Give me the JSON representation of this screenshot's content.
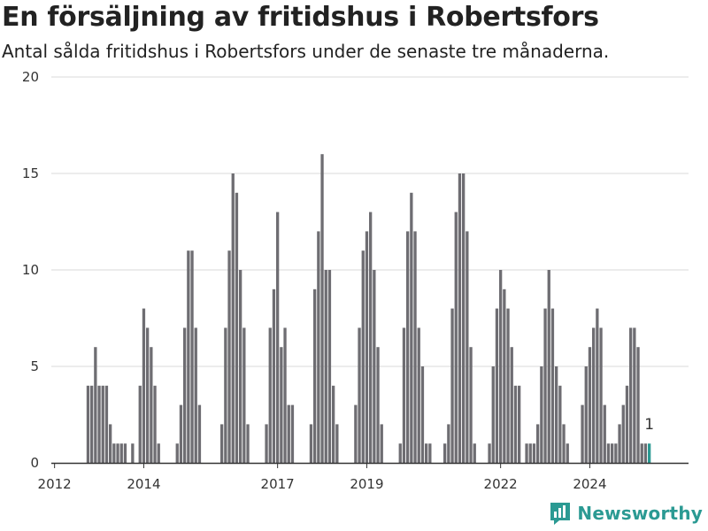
{
  "title": "En försäljning av fritidshus i Robertsfors",
  "subtitle": "Antal sålda fritidshus i Robertsfors under de senaste tre månaderna.",
  "brand": "Newsworthy",
  "chart_data": {
    "type": "bar",
    "x_start": "2012-01",
    "ylim": [
      0,
      20
    ],
    "y_ticks": [
      0,
      5,
      10,
      15,
      20
    ],
    "x_ticks": [
      "2012",
      "2014",
      "2017",
      "2019",
      "2022",
      "2024"
    ],
    "x_tick_months": [
      "2012-01",
      "2014-01",
      "2017-01",
      "2019-01",
      "2022-01",
      "2024-01"
    ],
    "grid": true,
    "colors": {
      "bar": "#6e6d72",
      "highlight": "#2b9a93",
      "grid": "#d9d9d9",
      "axis": "#333333"
    },
    "last_value_label": "1",
    "values": [
      0,
      0,
      0,
      0,
      0,
      0,
      0,
      0,
      0,
      4,
      4,
      6,
      4,
      4,
      4,
      2,
      1,
      1,
      1,
      1,
      0,
      1,
      0,
      4,
      8,
      7,
      6,
      4,
      1,
      0,
      0,
      0,
      0,
      1,
      3,
      7,
      11,
      11,
      7,
      3,
      0,
      0,
      0,
      0,
      0,
      2,
      7,
      11,
      15,
      14,
      10,
      7,
      2,
      0,
      0,
      0,
      0,
      2,
      7,
      9,
      13,
      6,
      7,
      3,
      3,
      0,
      0,
      0,
      0,
      2,
      9,
      12,
      16,
      10,
      10,
      4,
      2,
      0,
      0,
      0,
      0,
      3,
      7,
      11,
      12,
      13,
      10,
      6,
      2,
      0,
      0,
      0,
      0,
      1,
      7,
      12,
      14,
      12,
      7,
      5,
      1,
      1,
      0,
      0,
      0,
      1,
      2,
      8,
      13,
      15,
      15,
      12,
      6,
      1,
      0,
      0,
      0,
      1,
      5,
      8,
      10,
      9,
      8,
      6,
      4,
      4,
      0,
      1,
      1,
      1,
      2,
      5,
      8,
      10,
      8,
      5,
      4,
      2,
      1,
      0,
      0,
      0,
      3,
      5,
      6,
      7,
      8,
      7,
      3,
      1,
      1,
      1,
      2,
      3,
      4,
      7,
      7,
      6,
      1,
      1,
      1
    ]
  }
}
